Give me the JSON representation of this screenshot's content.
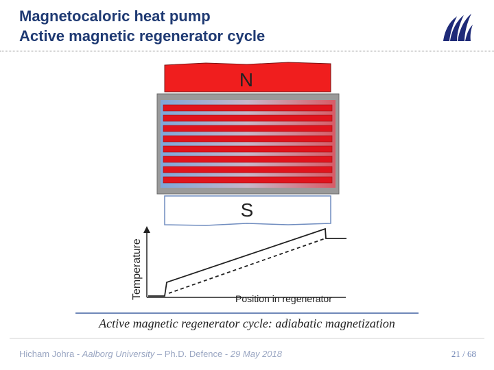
{
  "slide": {
    "title_line1": "Magnetocaloric heat pump",
    "title_line2": "Active magnetic regenerator cycle"
  },
  "diagram": {
    "magnet_north_label": "N",
    "magnet_south_label": "S",
    "y_axis_label": "Temperature",
    "x_axis_label": "Position in regenerator",
    "colors": {
      "north_magnet": "#f01e1e",
      "cold_side": "#7ea6d9",
      "hot_side": "#d85b66",
      "plate": "#e0141d"
    }
  },
  "caption": "Active magnetic regenerator cycle: adiabatic magnetization",
  "footer": {
    "author": "Hicham Johra",
    "sep1": " - ",
    "university": "Aalborg University",
    "sep2": " – Ph.D. Defence - ",
    "date": "29 May 2018",
    "page_number": "21 / 68"
  },
  "logo": {
    "icon": "aalborg-university-wave-logo"
  }
}
